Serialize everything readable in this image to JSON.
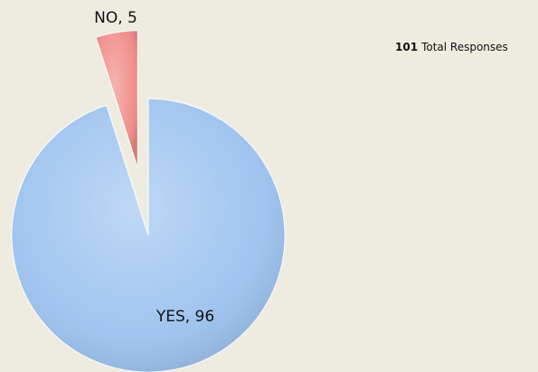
{
  "chart_data": {
    "type": "pie",
    "categories": [
      "YES",
      "NO"
    ],
    "values": [
      96,
      5
    ],
    "value_labels": [
      "YES, 96",
      "NO, 5"
    ],
    "colors": [
      "#9cc2ef",
      "#f08c88"
    ],
    "total": 101,
    "total_label": "Total Responses"
  }
}
